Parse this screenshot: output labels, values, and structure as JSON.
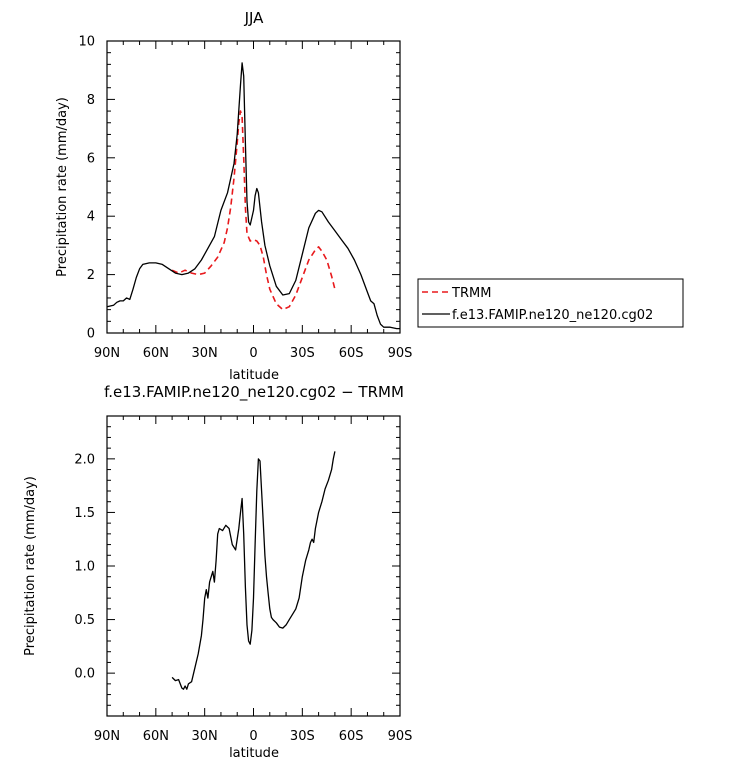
{
  "chart_data": [
    {
      "type": "line",
      "title": "JJA",
      "xlabel": "latitude",
      "ylabel": "Precipitation rate (mm/day)",
      "xlim": [
        90,
        -90
      ],
      "ylim": [
        0,
        10
      ],
      "xticks": [
        90,
        60,
        30,
        0,
        -30,
        -60,
        -90
      ],
      "xtick_labels": [
        "90N",
        "60N",
        "30N",
        "0",
        "30S",
        "60S",
        "90S"
      ],
      "yticks": [
        0,
        2,
        4,
        6,
        8,
        10
      ],
      "ytick_labels": [
        "0",
        "2",
        "4",
        "6",
        "8",
        "10"
      ],
      "grid": false,
      "legend_position": "right",
      "series": [
        {
          "name": "TRMM",
          "color": "#e8191c",
          "dash": "dashed",
          "points": [
            [
              50,
              2.15
            ],
            [
              46,
              2.05
            ],
            [
              42,
              2.15
            ],
            [
              38,
              2.05
            ],
            [
              34,
              2.0
            ],
            [
              30,
              2.05
            ],
            [
              26,
              2.3
            ],
            [
              22,
              2.6
            ],
            [
              18,
              3.1
            ],
            [
              16,
              3.6
            ],
            [
              14,
              4.3
            ],
            [
              12,
              5.3
            ],
            [
              10,
              6.5
            ],
            [
              9,
              7.2
            ],
            [
              8,
              7.6
            ],
            [
              7,
              7.4
            ],
            [
              6,
              6.0
            ],
            [
              5,
              4.3
            ],
            [
              4,
              3.4
            ],
            [
              2,
              3.15
            ],
            [
              0,
              3.2
            ],
            [
              -2,
              3.15
            ],
            [
              -4,
              3.0
            ],
            [
              -6,
              2.6
            ],
            [
              -8,
              2.0
            ],
            [
              -10,
              1.5
            ],
            [
              -14,
              1.0
            ],
            [
              -18,
              0.8
            ],
            [
              -22,
              0.9
            ],
            [
              -26,
              1.3
            ],
            [
              -30,
              1.9
            ],
            [
              -34,
              2.5
            ],
            [
              -38,
              2.85
            ],
            [
              -40,
              2.95
            ],
            [
              -42,
              2.8
            ],
            [
              -45,
              2.5
            ],
            [
              -48,
              1.95
            ],
            [
              -50,
              1.5
            ]
          ]
        },
        {
          "name": "f.e13.FAMIP.ne120_ne120.cg02",
          "color": "#000000",
          "dash": "solid",
          "points": [
            [
              90,
              0.9
            ],
            [
              86,
              0.95
            ],
            [
              84,
              1.05
            ],
            [
              82,
              1.1
            ],
            [
              80,
              1.1
            ],
            [
              78,
              1.2
            ],
            [
              76,
              1.15
            ],
            [
              74,
              1.5
            ],
            [
              72,
              1.9
            ],
            [
              70,
              2.2
            ],
            [
              68,
              2.35
            ],
            [
              64,
              2.4
            ],
            [
              60,
              2.4
            ],
            [
              56,
              2.35
            ],
            [
              52,
              2.2
            ],
            [
              48,
              2.05
            ],
            [
              44,
              2.0
            ],
            [
              40,
              2.05
            ],
            [
              36,
              2.2
            ],
            [
              32,
              2.5
            ],
            [
              28,
              2.9
            ],
            [
              24,
              3.3
            ],
            [
              20,
              4.2
            ],
            [
              16,
              4.8
            ],
            [
              12,
              5.8
            ],
            [
              10,
              6.8
            ],
            [
              8,
              8.5
            ],
            [
              7,
              9.25
            ],
            [
              6,
              8.8
            ],
            [
              5,
              6.5
            ],
            [
              4,
              4.5
            ],
            [
              3,
              3.8
            ],
            [
              2,
              3.7
            ],
            [
              0,
              4.2
            ],
            [
              -1,
              4.7
            ],
            [
              -2,
              4.95
            ],
            [
              -3,
              4.8
            ],
            [
              -5,
              3.8
            ],
            [
              -7,
              3.0
            ],
            [
              -10,
              2.3
            ],
            [
              -14,
              1.6
            ],
            [
              -18,
              1.3
            ],
            [
              -22,
              1.35
            ],
            [
              -26,
              1.8
            ],
            [
              -30,
              2.7
            ],
            [
              -34,
              3.6
            ],
            [
              -38,
              4.1
            ],
            [
              -40,
              4.2
            ],
            [
              -42,
              4.15
            ],
            [
              -46,
              3.8
            ],
            [
              -50,
              3.5
            ],
            [
              -54,
              3.2
            ],
            [
              -58,
              2.9
            ],
            [
              -62,
              2.5
            ],
            [
              -66,
              2.0
            ],
            [
              -70,
              1.4
            ],
            [
              -72,
              1.1
            ],
            [
              -74,
              1.0
            ],
            [
              -76,
              0.6
            ],
            [
              -78,
              0.3
            ],
            [
              -80,
              0.2
            ],
            [
              -84,
              0.2
            ],
            [
              -88,
              0.15
            ],
            [
              -90,
              0.15
            ]
          ]
        }
      ]
    },
    {
      "type": "line",
      "title": "f.e13.FAMIP.ne120_ne120.cg02 − TRMM",
      "xlabel": "latitude",
      "ylabel": "Precipitation rate (mm/day)",
      "xlim": [
        90,
        -90
      ],
      "ylim": [
        -0.4,
        2.4
      ],
      "xticks": [
        90,
        60,
        30,
        0,
        -30,
        -60,
        -90
      ],
      "xtick_labels": [
        "90N",
        "60N",
        "30N",
        "0",
        "30S",
        "60S",
        "90S"
      ],
      "yticks": [
        0,
        0.5,
        1,
        1.5,
        2
      ],
      "ytick_labels": [
        "0.0",
        "0.5",
        "1.0",
        "1.5",
        "2.0"
      ],
      "grid": false,
      "series": [
        {
          "color": "#000000",
          "dash": "solid",
          "points": [
            [
              50,
              -0.04
            ],
            [
              48,
              -0.07
            ],
            [
              46,
              -0.06
            ],
            [
              44,
              -0.14
            ],
            [
              43,
              -0.15
            ],
            [
              42,
              -0.12
            ],
            [
              41,
              -0.15
            ],
            [
              40,
              -0.1
            ],
            [
              38,
              -0.08
            ],
            [
              36,
              0.05
            ],
            [
              34,
              0.18
            ],
            [
              32,
              0.35
            ],
            [
              31,
              0.5
            ],
            [
              30,
              0.7
            ],
            [
              29,
              0.78
            ],
            [
              28,
              0.7
            ],
            [
              27,
              0.85
            ],
            [
              26,
              0.9
            ],
            [
              25,
              0.95
            ],
            [
              24,
              0.85
            ],
            [
              23,
              1.05
            ],
            [
              22,
              1.3
            ],
            [
              21,
              1.35
            ],
            [
              19,
              1.33
            ],
            [
              17,
              1.38
            ],
            [
              15,
              1.35
            ],
            [
              13,
              1.2
            ],
            [
              11,
              1.15
            ],
            [
              9,
              1.35
            ],
            [
              8,
              1.5
            ],
            [
              7,
              1.63
            ],
            [
              6,
              1.3
            ],
            [
              5,
              0.8
            ],
            [
              4,
              0.45
            ],
            [
              3,
              0.3
            ],
            [
              2,
              0.27
            ],
            [
              1,
              0.4
            ],
            [
              0,
              0.7
            ],
            [
              -1,
              1.2
            ],
            [
              -2,
              1.7
            ],
            [
              -3,
              2.0
            ],
            [
              -4,
              1.98
            ],
            [
              -5,
              1.7
            ],
            [
              -6,
              1.4
            ],
            [
              -7,
              1.1
            ],
            [
              -8,
              0.9
            ],
            [
              -9,
              0.75
            ],
            [
              -10,
              0.6
            ],
            [
              -11,
              0.52
            ],
            [
              -12,
              0.5
            ],
            [
              -14,
              0.47
            ],
            [
              -16,
              0.43
            ],
            [
              -18,
              0.42
            ],
            [
              -20,
              0.45
            ],
            [
              -22,
              0.5
            ],
            [
              -24,
              0.55
            ],
            [
              -26,
              0.6
            ],
            [
              -28,
              0.7
            ],
            [
              -30,
              0.9
            ],
            [
              -32,
              1.05
            ],
            [
              -34,
              1.15
            ],
            [
              -35,
              1.22
            ],
            [
              -36,
              1.25
            ],
            [
              -37,
              1.22
            ],
            [
              -38,
              1.35
            ],
            [
              -40,
              1.5
            ],
            [
              -42,
              1.6
            ],
            [
              -44,
              1.72
            ],
            [
              -46,
              1.8
            ],
            [
              -48,
              1.9
            ],
            [
              -49,
              2.0
            ],
            [
              -50,
              2.07
            ]
          ]
        }
      ]
    }
  ]
}
